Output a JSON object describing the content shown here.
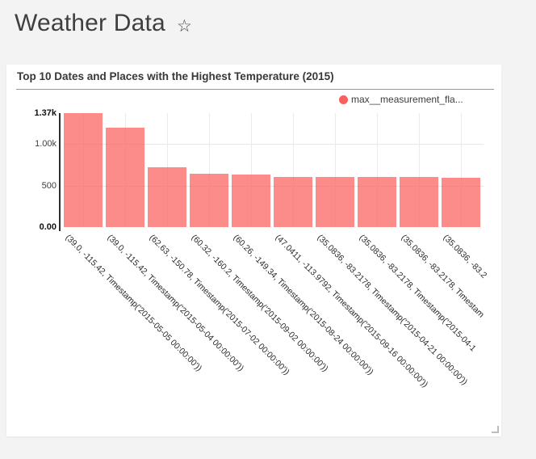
{
  "header": {
    "title": "Weather Data",
    "star_icon": "☆"
  },
  "card": {
    "title": "Top 10 Dates and Places with the Highest Temperature (2015)",
    "legend": {
      "label": "max__measurement_fla...",
      "marker_color": "#f95f5c"
    }
  },
  "colors": {
    "page_bg": "#f3f3f3",
    "card_bg": "#ffffff",
    "bar": "rgba(249,95,92,0.72)",
    "legend_marker": "#f95f5c",
    "grid": "#e9e9e9",
    "axis": "#2e2e2e"
  },
  "chart_data": {
    "type": "bar",
    "title": "Top 10 Dates and Places with the Highest Temperature (2015)",
    "xlabel": "",
    "ylabel": "",
    "legend_entries": [
      "max__measurement_fla..."
    ],
    "legend_position": "top-right",
    "grid": true,
    "ylim": [
      0,
      1370
    ],
    "yticks": [
      {
        "value": 1370,
        "label": "1.37k",
        "bold": true
      },
      {
        "value": 1000,
        "label": "1.00k",
        "bold": false
      },
      {
        "value": 500,
        "label": "500",
        "bold": false
      },
      {
        "value": 0,
        "label": "0.00",
        "bold": true
      }
    ],
    "grid_values": [
      1000,
      500
    ],
    "x_tick_rotation_deg": 45,
    "categories": [
      "(39.0, -115.42, Timestamp('2015-05-05 00:00:00'))",
      "(39.0, -115.42, Timestamp('2015-05-04 00:00:00'))",
      "(62.63, -150.78, Timestamp('2015-07-02 00:00:00'))",
      "(60.32, -160.2, Timestamp('2015-09-02 00:00:00'))",
      "(60.26, -149.34, Timestamp('2015-08-24 00:00:00'))",
      "(47.0411, -113.9792, Timestamp('2015-09-16 00:00:00'))",
      "(35.0836, -83.2178, Timestamp('2015-04-21 00:00:00'))",
      "(35.0836, -83.2178, Timestamp('2015-04-1",
      "(35.0836, -83.2178, Timestam",
      "(35.0836, -83.2"
    ],
    "values": [
      1370,
      1198,
      722,
      638,
      634,
      604,
      600,
      599,
      599,
      598
    ],
    "bar_color": "rgba(249,95,92,0.72)"
  }
}
